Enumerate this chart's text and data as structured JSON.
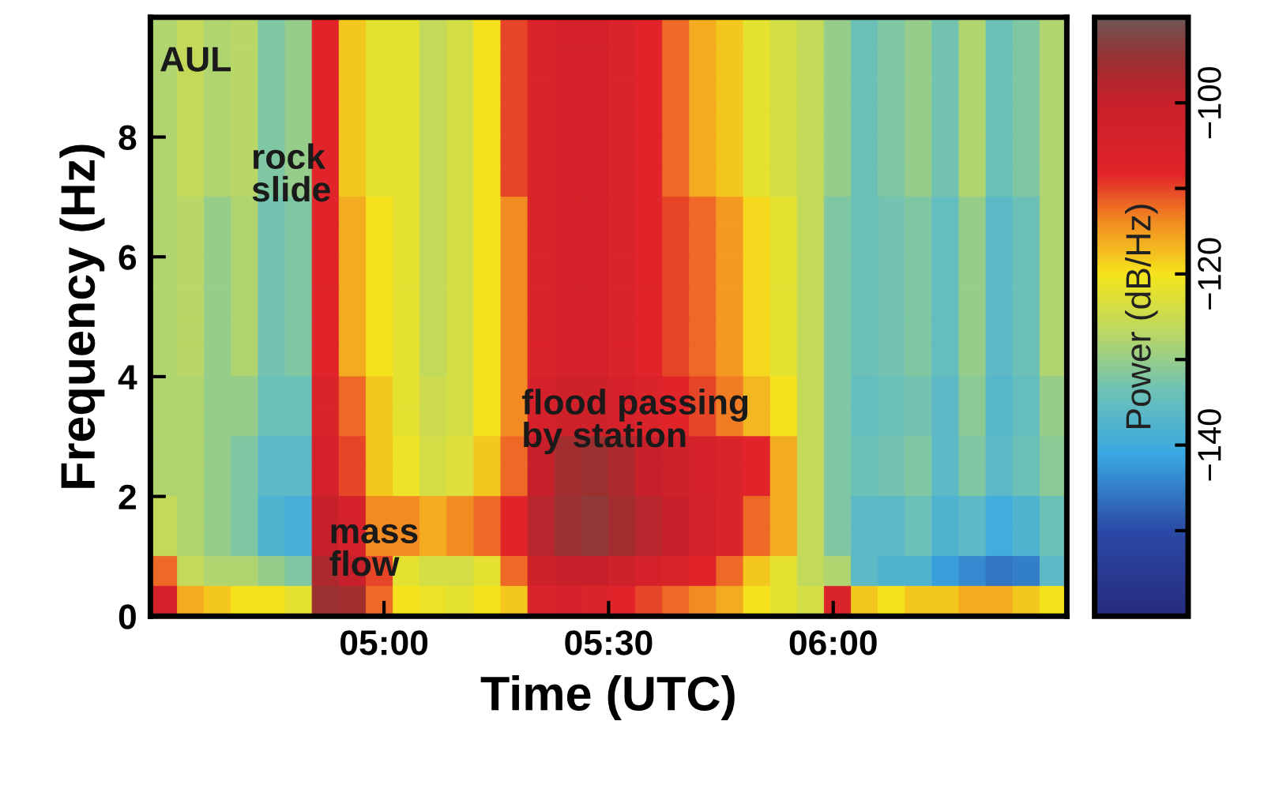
{
  "chart_data": {
    "type": "heatmap",
    "xlabel": "Time (UTC)",
    "ylabel": "Frequency (Hz)",
    "clabel": "Power (dB/Hz)",
    "xlim": [
      4.48,
      6.52
    ],
    "xticks": [
      {
        "value": 5,
        "label": "05:00"
      },
      {
        "value": 5.5,
        "label": "05:30"
      },
      {
        "value": 6,
        "label": "06:00"
      }
    ],
    "ylim": [
      0,
      10
    ],
    "yticks": [
      0,
      2,
      4,
      6,
      8
    ],
    "clim": [
      -160,
      -90
    ],
    "cticks": [
      -100,
      {
        "value": -110,
        "label": null
      },
      -120,
      {
        "value": -130,
        "label": null
      },
      -140,
      {
        "value": -150,
        "label": null
      }
    ],
    "cells": [
      [
        -128,
        -126,
        -128,
        -127,
        -132,
        -130,
        -108,
        -118,
        -122,
        -122,
        -126,
        -124,
        -120,
        -110,
        -106,
        -104,
        -104,
        -106,
        -108,
        -112,
        -116,
        -118,
        -122,
        -124,
        -126,
        -130,
        -134,
        -132,
        -130,
        -133,
        -128,
        -134,
        -132,
        -128
      ],
      [
        -128,
        -126,
        -128,
        -127,
        -132,
        -130,
        -108,
        -118,
        -122,
        -122,
        -126,
        -124,
        -120,
        -110,
        -106,
        -104,
        -104,
        -106,
        -108,
        -112,
        -116,
        -118,
        -122,
        -124,
        -126,
        -130,
        -134,
        -132,
        -130,
        -133,
        -128,
        -134,
        -132,
        -128
      ],
      [
        -128,
        -126,
        -128,
        -127,
        -132,
        -130,
        -108,
        -118,
        -122,
        -122,
        -126,
        -124,
        -120,
        -110,
        -106,
        -104,
        -104,
        -106,
        -108,
        -112,
        -116,
        -118,
        -122,
        -124,
        -126,
        -130,
        -134,
        -132,
        -130,
        -133,
        -128,
        -134,
        -132,
        -128
      ],
      [
        -128,
        -126,
        -128,
        -127,
        -132,
        -130,
        -108,
        -118,
        -122,
        -122,
        -126,
        -124,
        -120,
        -110,
        -106,
        -104,
        -104,
        -106,
        -108,
        -112,
        -116,
        -118,
        -122,
        -124,
        -126,
        -130,
        -134,
        -132,
        -130,
        -133,
        -128,
        -134,
        -132,
        -128
      ],
      [
        -128,
        -126,
        -128,
        -127,
        -132,
        -130,
        -108,
        -118,
        -122,
        -122,
        -126,
        -124,
        -120,
        -110,
        -106,
        -104,
        -104,
        -106,
        -108,
        -112,
        -116,
        -118,
        -122,
        -124,
        -126,
        -130,
        -134,
        -132,
        -130,
        -133,
        -128,
        -134,
        -132,
        -128
      ],
      [
        -128,
        -126,
        -128,
        -127,
        -132,
        -130,
        -108,
        -118,
        -122,
        -122,
        -126,
        -124,
        -120,
        -110,
        -106,
        -104,
        -104,
        -106,
        -108,
        -112,
        -116,
        -118,
        -122,
        -124,
        -126,
        -130,
        -134,
        -132,
        -130,
        -133,
        -128,
        -134,
        -132,
        -128
      ],
      [
        -128,
        -127,
        -130,
        -128,
        -133,
        -132,
        -108,
        -116,
        -120,
        -122,
        -126,
        -124,
        -120,
        -114,
        -106,
        -104,
        -104,
        -106,
        -108,
        -110,
        -112,
        -115,
        -119,
        -122,
        -126,
        -132,
        -134,
        -133,
        -132,
        -135,
        -130,
        -136,
        -134,
        -128
      ],
      [
        -128,
        -127,
        -130,
        -128,
        -133,
        -132,
        -108,
        -116,
        -120,
        -122,
        -126,
        -124,
        -120,
        -114,
        -106,
        -104,
        -104,
        -106,
        -108,
        -110,
        -112,
        -115,
        -119,
        -122,
        -126,
        -132,
        -134,
        -133,
        -132,
        -135,
        -130,
        -136,
        -134,
        -128
      ],
      [
        -128,
        -127,
        -130,
        -128,
        -133,
        -132,
        -108,
        -116,
        -120,
        -122,
        -126,
        -124,
        -120,
        -114,
        -106,
        -104,
        -104,
        -106,
        -108,
        -110,
        -112,
        -115,
        -119,
        -122,
        -126,
        -132,
        -134,
        -133,
        -132,
        -135,
        -130,
        -136,
        -134,
        -128
      ],
      [
        -128,
        -127,
        -130,
        -128,
        -133,
        -132,
        -108,
        -116,
        -120,
        -122,
        -126,
        -124,
        -120,
        -114,
        -106,
        -104,
        -104,
        -106,
        -108,
        -110,
        -112,
        -115,
        -119,
        -122,
        -126,
        -132,
        -134,
        -133,
        -132,
        -135,
        -130,
        -136,
        -134,
        -128
      ],
      [
        -128,
        -127,
        -130,
        -128,
        -133,
        -132,
        -108,
        -116,
        -120,
        -122,
        -126,
        -124,
        -120,
        -114,
        -106,
        -104,
        -104,
        -106,
        -108,
        -110,
        -112,
        -115,
        -119,
        -122,
        -126,
        -132,
        -134,
        -133,
        -132,
        -135,
        -130,
        -136,
        -134,
        -128
      ],
      [
        -128,
        -127,
        -130,
        -128,
        -133,
        -132,
        -108,
        -116,
        -120,
        -122,
        -126,
        -124,
        -120,
        -114,
        -106,
        -104,
        -104,
        -106,
        -108,
        -110,
        -112,
        -115,
        -119,
        -122,
        -126,
        -132,
        -134,
        -133,
        -132,
        -135,
        -130,
        -136,
        -134,
        -128
      ],
      [
        -128,
        -128,
        -130,
        -130,
        -134,
        -134,
        -106,
        -112,
        -118,
        -122,
        -125,
        -124,
        -120,
        -114,
        -104,
        -102,
        -102,
        -104,
        -106,
        -108,
        -110,
        -113,
        -117,
        -120,
        -126,
        -132,
        -135,
        -134,
        -133,
        -136,
        -131,
        -137,
        -135,
        -130
      ],
      [
        -128,
        -128,
        -130,
        -130,
        -134,
        -134,
        -106,
        -112,
        -118,
        -122,
        -125,
        -124,
        -120,
        -114,
        -104,
        -102,
        -102,
        -104,
        -106,
        -108,
        -110,
        -113,
        -117,
        -120,
        -126,
        -132,
        -135,
        -134,
        -133,
        -136,
        -131,
        -137,
        -135,
        -130
      ],
      [
        -128,
        -128,
        -130,
        -132,
        -136,
        -136,
        -104,
        -110,
        -118,
        -121,
        -124,
        -123,
        -118,
        -112,
        -100,
        -96,
        -95,
        -97,
        -100,
        -102,
        -104,
        -106,
        -108,
        -116,
        -126,
        -132,
        -134,
        -133,
        -132,
        -136,
        -132,
        -136,
        -134,
        -131
      ],
      [
        -128,
        -128,
        -130,
        -132,
        -136,
        -136,
        -104,
        -110,
        -118,
        -121,
        -124,
        -123,
        -118,
        -112,
        -100,
        -96,
        -95,
        -97,
        -100,
        -102,
        -104,
        -106,
        -108,
        -116,
        -126,
        -132,
        -134,
        -133,
        -132,
        -136,
        -132,
        -136,
        -134,
        -131
      ],
      [
        -126,
        -128,
        -130,
        -132,
        -138,
        -139,
        -100,
        -104,
        -114,
        -114,
        -116,
        -114,
        -112,
        -108,
        -98,
        -95,
        -94,
        -96,
        -98,
        -100,
        -103,
        -106,
        -112,
        -116,
        -126,
        -132,
        -136,
        -136,
        -134,
        -138,
        -136,
        -140,
        -138,
        -134
      ],
      [
        -126,
        -128,
        -130,
        -132,
        -138,
        -139,
        -100,
        -104,
        -114,
        -114,
        -116,
        -114,
        -112,
        -108,
        -98,
        -95,
        -94,
        -96,
        -98,
        -100,
        -103,
        -106,
        -112,
        -116,
        -126,
        -132,
        -136,
        -136,
        -134,
        -138,
        -136,
        -140,
        -138,
        -134
      ],
      [
        -112,
        -126,
        -128,
        -128,
        -130,
        -132,
        -97,
        -100,
        -110,
        -122,
        -124,
        -124,
        -122,
        -112,
        -102,
        -100,
        -100,
        -102,
        -104,
        -106,
        -108,
        -112,
        -118,
        -122,
        -126,
        -128,
        -136,
        -138,
        -138,
        -142,
        -144,
        -146,
        -145,
        -136
      ],
      [
        -104,
        -116,
        -118,
        -120,
        -120,
        -122,
        -95,
        -96,
        -112,
        -120,
        -121,
        -122,
        -120,
        -118,
        -106,
        -104,
        -106,
        -108,
        -110,
        -112,
        -114,
        -116,
        -120,
        -122,
        -124,
        -106,
        -118,
        -120,
        -118,
        -118,
        -116,
        -116,
        -118,
        -120
      ]
    ],
    "annotations": [
      "AUL",
      "rock\nslide",
      "mass\nflow",
      "flood passing\nby station"
    ]
  }
}
